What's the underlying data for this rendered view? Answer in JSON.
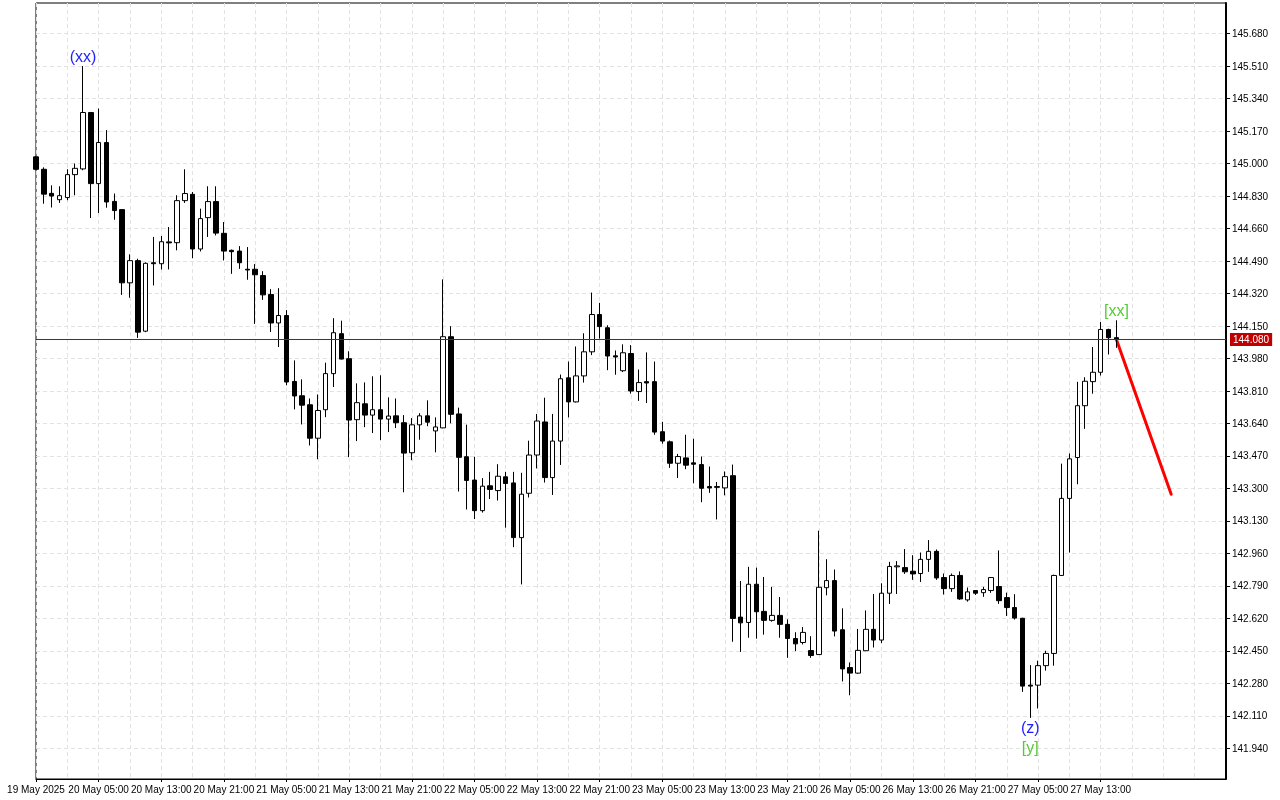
{
  "chart_data": {
    "type": "candlestick",
    "color": "#000000",
    "categories": [
      "19 May 2025",
      null,
      null,
      null,
      null,
      null,
      null,
      null,
      "20 May 05:00",
      null,
      null,
      null,
      null,
      null,
      null,
      null,
      "20 May 13:00",
      null,
      null,
      null,
      null,
      null,
      null,
      null,
      "20 May 21:00",
      null,
      null,
      null,
      null,
      null,
      null,
      null,
      "21 May 05:00",
      null,
      null,
      null,
      null,
      null,
      null,
      null,
      "21 May 13:00",
      null,
      null,
      null,
      null,
      null,
      null,
      null,
      "21 May 21:00",
      null,
      null,
      null,
      null,
      null,
      null,
      null,
      "22 May 05:00",
      null,
      null,
      null,
      null,
      null,
      null,
      null,
      "22 May 13:00",
      null,
      null,
      null,
      null,
      null,
      null,
      null,
      "22 May 21:00",
      null,
      null,
      null,
      null,
      null,
      null,
      null,
      "23 May 05:00",
      null,
      null,
      null,
      null,
      null,
      null,
      null,
      "23 May 13:00",
      null,
      null,
      null,
      null,
      null,
      null,
      null,
      "23 May 21:00",
      null,
      null,
      null,
      null,
      null,
      null,
      null,
      "26 May 05:00",
      null,
      null,
      null,
      null,
      null,
      null,
      null,
      "26 May 13:00",
      null,
      null,
      null,
      null,
      null,
      null,
      null,
      "26 May 21:00",
      null,
      null,
      null,
      null,
      null,
      null,
      null,
      "27 May 05:00",
      null,
      null,
      null,
      null,
      null,
      null,
      null,
      "27 May 13:00",
      null,
      null,
      null,
      null,
      null,
      null,
      null,
      null,
      null,
      null,
      null,
      null,
      null,
      null,
      null,
      null
    ],
    "ohlc": [
      [
        145.035,
        145.04,
        144.965,
        144.97
      ],
      [
        144.97,
        144.98,
        144.79,
        144.84
      ],
      [
        144.844,
        144.886,
        144.77,
        144.83
      ],
      [
        144.811,
        144.881,
        144.794,
        144.832
      ],
      [
        144.822,
        144.97,
        144.808,
        144.942
      ],
      [
        144.942,
        145.0,
        144.834,
        144.975
      ],
      [
        144.972,
        145.51,
        144.965,
        145.267
      ],
      [
        145.267,
        145.27,
        144.715,
        144.895
      ],
      [
        144.895,
        145.288,
        144.741,
        145.11
      ],
      [
        145.11,
        145.175,
        144.769,
        144.799
      ],
      [
        144.802,
        144.843,
        144.706,
        144.754
      ],
      [
        144.759,
        144.76,
        144.313,
        144.376
      ],
      [
        144.376,
        144.525,
        144.298,
        144.492
      ],
      [
        144.492,
        144.502,
        144.088,
        144.118
      ],
      [
        144.123,
        144.483,
        144.118,
        144.478
      ],
      [
        144.481,
        144.616,
        144.362,
        144.476
      ],
      [
        144.476,
        144.621,
        144.446,
        144.591
      ],
      [
        144.59,
        144.668,
        144.446,
        144.585
      ],
      [
        144.586,
        144.834,
        144.546,
        144.806
      ],
      [
        144.806,
        144.97,
        144.794,
        144.843
      ],
      [
        144.839,
        144.851,
        144.505,
        144.553
      ],
      [
        144.553,
        144.764,
        144.54,
        144.712
      ],
      [
        144.717,
        144.881,
        144.616,
        144.801
      ],
      [
        144.801,
        144.881,
        144.624,
        144.636
      ],
      [
        144.635,
        144.694,
        144.493,
        144.542
      ],
      [
        144.546,
        144.55,
        144.423,
        144.539
      ],
      [
        144.542,
        144.568,
        144.449,
        144.481
      ],
      [
        144.447,
        144.563,
        144.392,
        144.443
      ],
      [
        144.447,
        144.474,
        144.161,
        144.418
      ],
      [
        144.414,
        144.437,
        144.287,
        144.313
      ],
      [
        144.315,
        144.343,
        144.119,
        144.166
      ],
      [
        144.166,
        144.348,
        144.04,
        144.205
      ],
      [
        144.205,
        144.233,
        143.84,
        143.857
      ],
      [
        143.86,
        143.97,
        143.714,
        143.784
      ],
      [
        143.785,
        143.871,
        143.635,
        143.736
      ],
      [
        143.738,
        143.771,
        143.525,
        143.563
      ],
      [
        143.563,
        143.792,
        143.453,
        143.708
      ],
      [
        143.712,
        143.958,
        143.673,
        143.901
      ],
      [
        143.901,
        144.191,
        143.831,
        144.115
      ],
      [
        144.11,
        144.178,
        143.975,
        143.977
      ],
      [
        143.979,
        144.018,
        143.464,
        143.658
      ],
      [
        143.66,
        143.85,
        143.548,
        143.749
      ],
      [
        143.743,
        143.855,
        143.621,
        143.684
      ],
      [
        143.684,
        143.887,
        143.59,
        143.712
      ],
      [
        143.712,
        143.892,
        143.553,
        143.663
      ],
      [
        143.663,
        143.777,
        143.595,
        143.679
      ],
      [
        143.68,
        143.771,
        143.616,
        143.644
      ],
      [
        143.644,
        143.684,
        143.28,
        143.485
      ],
      [
        143.487,
        143.668,
        143.448,
        143.633
      ],
      [
        143.633,
        143.694,
        143.555,
        143.68
      ],
      [
        143.68,
        143.761,
        143.626,
        143.647
      ],
      [
        143.601,
        143.672,
        143.489,
        143.622
      ],
      [
        143.617,
        144.394,
        143.615,
        144.094
      ],
      [
        144.094,
        144.149,
        143.641,
        143.688
      ],
      [
        143.69,
        143.723,
        143.284,
        143.463
      ],
      [
        143.466,
        143.634,
        143.19,
        143.342
      ],
      [
        143.344,
        143.466,
        143.14,
        143.184
      ],
      [
        143.184,
        143.354,
        143.174,
        143.312
      ],
      [
        143.314,
        143.387,
        143.245,
        143.295
      ],
      [
        143.289,
        143.427,
        143.237,
        143.364
      ],
      [
        143.361,
        143.387,
        143.095,
        143.326
      ],
      [
        143.329,
        143.387,
        142.993,
        143.043
      ],
      [
        143.043,
        143.382,
        142.798,
        143.27
      ],
      [
        143.275,
        143.55,
        143.253,
        143.475
      ],
      [
        143.475,
        143.69,
        143.405,
        143.653
      ],
      [
        143.648,
        143.775,
        143.331,
        143.357
      ],
      [
        143.357,
        143.69,
        143.266,
        143.548
      ],
      [
        143.548,
        143.896,
        143.423,
        143.874
      ],
      [
        143.879,
        143.964,
        143.672,
        143.753
      ],
      [
        143.753,
        144.043,
        143.75,
        143.889
      ],
      [
        143.889,
        144.112,
        143.854,
        144.015
      ],
      [
        144.015,
        144.325,
        143.998,
        144.21
      ],
      [
        144.21,
        144.271,
        144.084,
        144.147
      ],
      [
        144.141,
        144.154,
        143.919,
        143.993
      ],
      [
        143.994,
        144.022,
        143.895,
        143.988
      ],
      [
        143.916,
        144.054,
        143.909,
        144.01
      ],
      [
        144.006,
        144.05,
        143.796,
        143.81
      ],
      [
        143.807,
        143.922,
        143.758,
        143.854
      ],
      [
        143.859,
        144.012,
        143.747,
        143.852
      ],
      [
        143.859,
        143.964,
        143.581,
        143.595
      ],
      [
        143.597,
        143.649,
        143.534,
        143.548
      ],
      [
        143.544,
        143.551,
        143.408,
        143.432
      ],
      [
        143.432,
        143.481,
        143.355,
        143.467
      ],
      [
        143.46,
        143.581,
        143.401,
        143.422
      ],
      [
        143.434,
        143.56,
        143.327,
        143.427
      ],
      [
        143.425,
        143.467,
        143.228,
        143.301
      ],
      [
        143.31,
        143.415,
        143.277,
        143.303
      ],
      [
        143.31,
        143.334,
        143.138,
        143.306
      ],
      [
        143.303,
        143.389,
        143.264,
        143.362
      ],
      [
        143.367,
        143.425,
        142.498,
        142.62
      ],
      [
        142.627,
        142.816,
        142.445,
        142.597
      ],
      [
        142.599,
        142.89,
        142.519,
        142.799
      ],
      [
        142.799,
        142.886,
        142.514,
        142.655
      ],
      [
        142.657,
        142.837,
        142.535,
        142.61
      ],
      [
        142.61,
        142.785,
        142.603,
        142.636
      ],
      [
        142.636,
        142.732,
        142.519,
        142.589
      ],
      [
        142.589,
        142.615,
        142.414,
        142.515
      ],
      [
        142.515,
        142.548,
        142.449,
        142.487
      ],
      [
        142.494,
        142.575,
        142.484,
        142.547
      ],
      [
        142.452,
        142.527,
        142.414,
        142.426
      ],
      [
        142.431,
        143.079,
        142.43,
        142.783
      ],
      [
        142.781,
        142.93,
        142.741,
        142.818
      ],
      [
        142.818,
        142.876,
        142.526,
        142.554
      ],
      [
        142.561,
        142.673,
        142.29,
        142.356
      ],
      [
        142.363,
        142.39,
        142.218,
        142.334
      ],
      [
        142.334,
        142.565,
        142.33,
        142.453
      ],
      [
        142.451,
        142.662,
        142.45,
        142.563
      ],
      [
        142.563,
        142.748,
        142.468,
        142.507
      ],
      [
        142.507,
        142.804,
        142.491,
        142.752
      ],
      [
        142.752,
        142.916,
        142.696,
        142.892
      ],
      [
        142.89,
        142.92,
        142.748,
        142.895
      ],
      [
        142.886,
        142.983,
        142.853,
        142.864
      ],
      [
        142.867,
        142.951,
        142.822,
        142.853
      ],
      [
        142.855,
        142.965,
        142.811,
        142.929
      ],
      [
        142.929,
        143.03,
        142.864,
        142.971
      ],
      [
        142.971,
        142.981,
        142.822,
        142.832
      ],
      [
        142.834,
        142.855,
        142.745,
        142.776
      ],
      [
        142.776,
        142.855,
        142.759,
        142.845
      ],
      [
        142.845,
        142.866,
        142.717,
        142.722
      ],
      [
        142.717,
        142.782,
        142.708,
        142.759
      ],
      [
        142.766,
        142.768,
        142.743,
        142.752
      ],
      [
        142.755,
        142.785,
        142.733,
        142.771
      ],
      [
        142.766,
        142.836,
        142.754,
        142.834
      ],
      [
        142.787,
        142.976,
        142.696,
        142.713
      ],
      [
        142.729,
        142.755,
        142.633,
        142.677
      ],
      [
        142.677,
        142.747,
        142.614,
        142.622
      ],
      [
        142.621,
        142.623,
        142.236,
        142.266
      ],
      [
        142.271,
        142.376,
        142.1,
        142.266
      ],
      [
        142.271,
        142.399,
        142.149,
        142.373
      ],
      [
        142.373,
        142.451,
        142.347,
        142.437
      ],
      [
        142.437,
        142.849,
        142.373,
        142.845
      ],
      [
        142.845,
        143.43,
        142.843,
        143.248
      ],
      [
        143.248,
        143.483,
        142.965,
        143.455
      ],
      [
        143.462,
        143.858,
        143.322,
        143.733
      ],
      [
        143.733,
        143.882,
        143.612,
        143.861
      ],
      [
        143.859,
        144.04,
        143.796,
        143.908
      ],
      [
        143.908,
        144.171,
        143.891,
        144.132
      ],
      [
        144.132,
        144.136,
        144.001,
        144.089
      ],
      [
        144.089,
        144.18,
        144.036,
        144.08
      ],
      null,
      null,
      null,
      null,
      null,
      null,
      null,
      null,
      null,
      null,
      null,
      null,
      null,
      null
    ],
    "series": [
      {
        "type": "line",
        "color": "#ff0000",
        "values": [
          null,
          null,
          null,
          null,
          null,
          null,
          null,
          null,
          null,
          null,
          null,
          null,
          null,
          null,
          null,
          null,
          null,
          null,
          null,
          null,
          null,
          null,
          null,
          null,
          null,
          null,
          null,
          null,
          null,
          null,
          null,
          null,
          null,
          null,
          null,
          null,
          null,
          null,
          null,
          null,
          null,
          null,
          null,
          null,
          null,
          null,
          null,
          null,
          null,
          null,
          null,
          null,
          null,
          null,
          null,
          null,
          null,
          null,
          null,
          null,
          null,
          null,
          null,
          null,
          null,
          null,
          null,
          null,
          null,
          null,
          null,
          null,
          null,
          null,
          null,
          null,
          null,
          null,
          null,
          null,
          null,
          null,
          null,
          null,
          null,
          null,
          null,
          null,
          null,
          null,
          null,
          null,
          null,
          null,
          null,
          null,
          null,
          null,
          null,
          null,
          null,
          null,
          null,
          null,
          null,
          null,
          null,
          null,
          null,
          null,
          null,
          null,
          null,
          null,
          null,
          null,
          null,
          null,
          null,
          null,
          null,
          null,
          null,
          null,
          null,
          null,
          null,
          null,
          null,
          null,
          null,
          null,
          null,
          null,
          null,
          null,
          null,
          null,
          144.08,
          null,
          null,
          null,
          null,
          null,
          null,
          143.27,
          null,
          null,
          null,
          null,
          null,
          null,
          null
        ]
      }
    ],
    "ylim": [
      141.78,
      145.84
    ],
    "yticks": [
      {
        "value": 141.94,
        "label": "141.940"
      },
      {
        "value": 142.11,
        "label": "142.110"
      },
      {
        "value": 142.28,
        "label": "142.280"
      },
      {
        "value": 142.45,
        "label": "142.450"
      },
      {
        "value": 142.62,
        "label": "142.620"
      },
      {
        "value": 142.79,
        "label": "142.790"
      },
      {
        "value": 142.96,
        "label": "142.960"
      },
      {
        "value": 143.13,
        "label": "143.130"
      },
      {
        "value": 143.3,
        "label": "143.300"
      },
      {
        "value": 143.47,
        "label": "143.470"
      },
      {
        "value": 143.64,
        "label": "143.640"
      },
      {
        "value": 143.81,
        "label": "143.810"
      },
      {
        "value": 143.98,
        "label": "143.980"
      },
      {
        "value": 144.15,
        "label": "144.150"
      },
      {
        "value": 144.32,
        "label": "144.320"
      },
      {
        "value": 144.49,
        "label": "144.490"
      },
      {
        "value": 144.66,
        "label": "144.660"
      },
      {
        "value": 144.83,
        "label": "144.830"
      },
      {
        "value": 145.0,
        "label": "145.000"
      },
      {
        "value": 145.17,
        "label": "145.170"
      },
      {
        "value": 145.34,
        "label": "145.340"
      },
      {
        "value": 145.51,
        "label": "145.510"
      },
      {
        "value": 145.68,
        "label": "145.680"
      }
    ],
    "grid": true,
    "ref_lines": [
      {
        "axis": "y",
        "value": 144.08,
        "label": "144.080",
        "color": "#c00000"
      }
    ],
    "annotations": [
      {
        "text": "(xx)",
        "y": 145.51
      },
      {
        "text": "[xx]",
        "y": 144.18
      },
      {
        "text": "(z)",
        "y": 142.1
      },
      {
        "text": "[y]",
        "y": 142.1
      }
    ]
  }
}
